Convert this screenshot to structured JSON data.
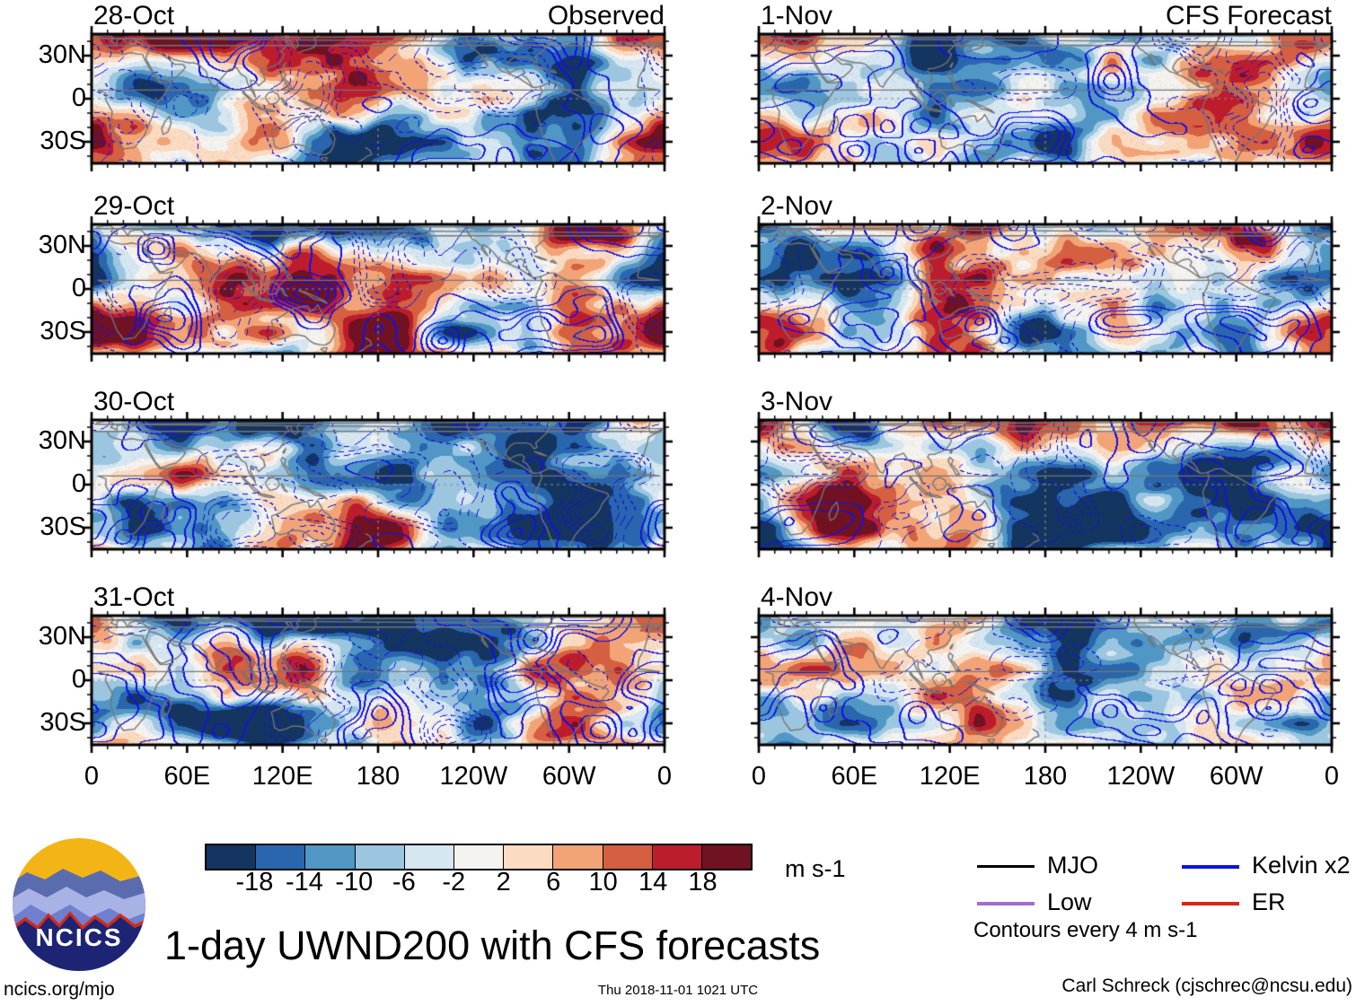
{
  "columns": [
    "Observed",
    "CFS Forecast"
  ],
  "panels": [
    {
      "date": "28-Oct",
      "column": "Observed"
    },
    {
      "date": "29-Oct",
      "column": "Observed"
    },
    {
      "date": "30-Oct",
      "column": "Observed"
    },
    {
      "date": "31-Oct",
      "column": "Observed"
    },
    {
      "date": "1-Nov",
      "column": "CFS Forecast"
    },
    {
      "date": "2-Nov",
      "column": "CFS Forecast"
    },
    {
      "date": "3-Nov",
      "column": "CFS Forecast"
    },
    {
      "date": "4-Nov",
      "column": "CFS Forecast"
    }
  ],
  "axes": {
    "y_ticks": [
      "30N",
      "0",
      "30S"
    ],
    "x_ticks": [
      "0",
      "60E",
      "120E",
      "180",
      "120W",
      "60W",
      "0"
    ]
  },
  "colorbar": {
    "tick_labels": [
      "-18",
      "-14",
      "-10",
      "-6",
      "-2",
      "2",
      "6",
      "10",
      "14",
      "18"
    ],
    "colors": [
      "#14355f",
      "#2a66ae",
      "#5097c5",
      "#9cc6df",
      "#d6e7f2",
      "#f5f3f0",
      "#fbdcc3",
      "#f2a477",
      "#d45f41",
      "#bd1c2d",
      "#701222"
    ],
    "units": "m s-1"
  },
  "legend": {
    "items": [
      {
        "label": "MJO",
        "color": "#000000"
      },
      {
        "label": "Kelvin x2",
        "color": "#0a12e0"
      },
      {
        "label": "Low",
        "color": "#a26cd2"
      },
      {
        "label": "ER",
        "color": "#e02318"
      }
    ],
    "note": "Contours every 4 m s-1"
  },
  "title": "1-day UWND200 with CFS forecasts",
  "logo": {
    "text": "NCICS"
  },
  "footer": {
    "left": "ncics.org/mjo",
    "center": "Thu 2018-11-01 1021 UTC",
    "right": "Carl Schreck (cjschrec@ncsu.edu)"
  },
  "chart_data": {
    "type": "heatmap",
    "title": "1-day UWND200 with CFS forecasts",
    "variable": "UWND200 (200-hPa zonal wind) anomalies with wave-filtered contours",
    "units": "m s-1",
    "layout": "8 world-map panels in 2 columns x 4 rows",
    "columns": [
      {
        "title": "Observed",
        "dates": [
          "28-Oct",
          "29-Oct",
          "30-Oct",
          "31-Oct"
        ]
      },
      {
        "title": "CFS Forecast",
        "dates": [
          "1-Nov",
          "2-Nov",
          "3-Nov",
          "4-Nov"
        ]
      }
    ],
    "x_axis": {
      "tick_labels": [
        "0",
        "60E",
        "120E",
        "180",
        "120W",
        "60W",
        "0"
      ],
      "range_deg_lon": [
        0,
        360
      ]
    },
    "y_axis": {
      "tick_labels": [
        "30N",
        "0",
        "30S"
      ],
      "range_deg_lat": [
        -45,
        45
      ]
    },
    "shading_colorbar": {
      "boundaries": [
        -18,
        -14,
        -10,
        -6,
        -2,
        2,
        6,
        10,
        14,
        18
      ],
      "colors": [
        "#14355f",
        "#2a66ae",
        "#5097c5",
        "#9cc6df",
        "#d6e7f2",
        "#f5f3f0",
        "#fbdcc3",
        "#f2a477",
        "#d45f41",
        "#bd1c2d",
        "#701222"
      ],
      "units": "m s-1"
    },
    "contours": {
      "interval": 4,
      "units": "m s-1",
      "note": "Contours every 4 m s-1",
      "style": "blue solid positive, blue dashed negative"
    },
    "legend": [
      {
        "label": "MJO",
        "color": "#000000"
      },
      {
        "label": "Kelvin x2",
        "color": "#0a12e0"
      },
      {
        "label": "Low",
        "color": "#a26cd2"
      },
      {
        "label": "ER",
        "color": "#e02318"
      }
    ],
    "legend_position": "bottom-right",
    "grid": "dotted gray equator line and dashed gray dateline (180) on each panel"
  }
}
